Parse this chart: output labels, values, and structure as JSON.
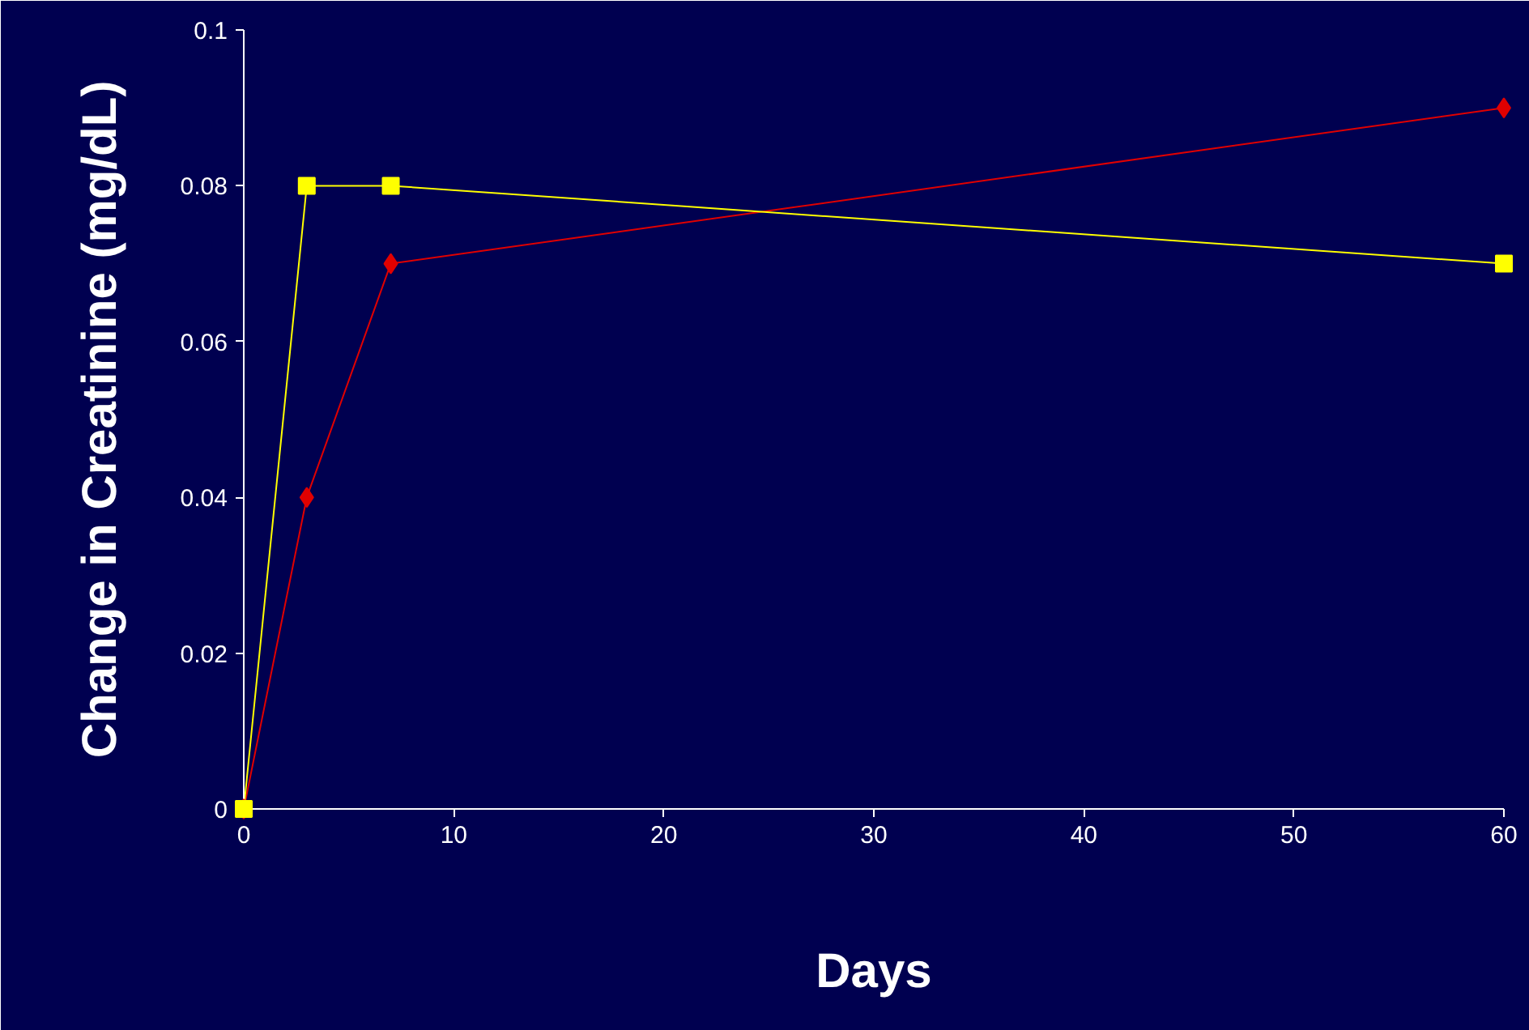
{
  "chart_data": {
    "type": "line",
    "xlabel": "Days",
    "ylabel": "Change in Creatinine (mg/dL)",
    "xlim": [
      0,
      60
    ],
    "xticks": [
      0,
      10,
      20,
      30,
      40,
      50,
      60
    ],
    "ylim": [
      0,
      0.1
    ],
    "yticks": [
      0,
      0.02,
      0.04,
      0.06,
      0.08,
      0.1
    ],
    "grid": false,
    "line_style": "solid",
    "series": [
      {
        "color": "#e00000",
        "marker": "diamond",
        "x": [
          0,
          3,
          7,
          60
        ],
        "values": [
          0,
          0.04,
          0.07,
          0.09
        ]
      },
      {
        "color": "#ffff00",
        "marker": "square",
        "x": [
          0,
          3,
          7,
          60
        ],
        "values": [
          0,
          0.08,
          0.08,
          0.07
        ]
      }
    ]
  }
}
